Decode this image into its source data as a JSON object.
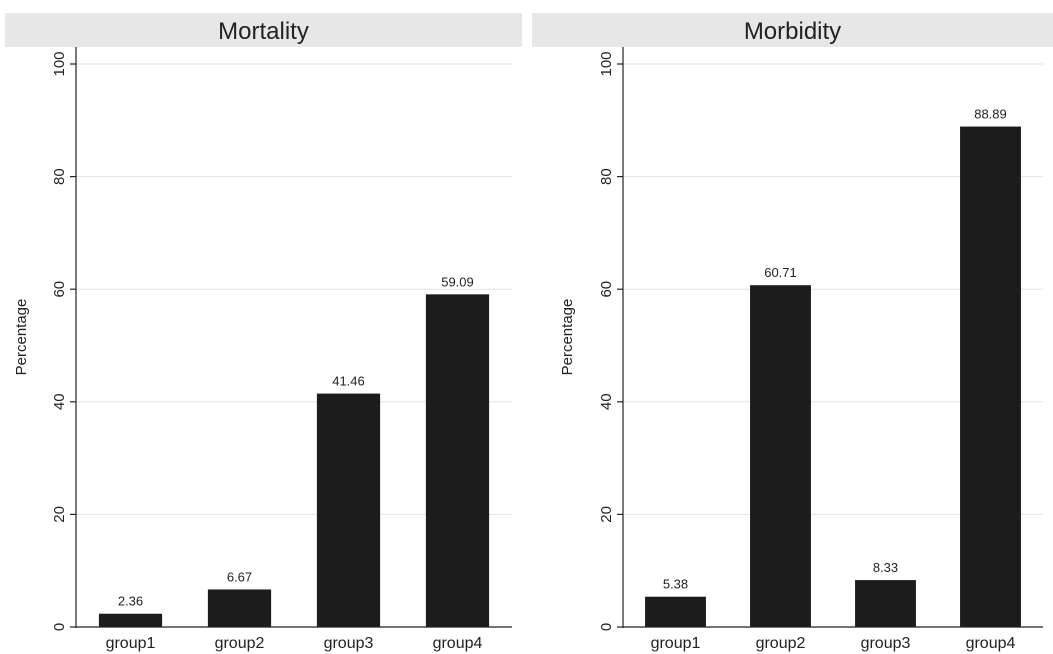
{
  "chart_data": [
    {
      "type": "bar",
      "title": "Mortality",
      "ylabel": "Percentage",
      "xlabel": "",
      "categories": [
        "group1",
        "group2",
        "group3",
        "group4"
      ],
      "values": [
        2.36,
        6.67,
        41.46,
        59.09
      ],
      "value_labels": [
        "2.36",
        "6.67",
        "41.46",
        "59.09"
      ],
      "ylim": [
        0,
        100
      ],
      "yticks": [
        0,
        20,
        40,
        60,
        80,
        100
      ],
      "ytick_labels": [
        "0",
        "20",
        "40",
        "60",
        "80",
        "100"
      ],
      "grid": true,
      "legend": "none",
      "bar_color": "#1c1c1c",
      "title_band_color": "#e7e7e7"
    },
    {
      "type": "bar",
      "title": "Morbidity",
      "ylabel": "Percentage",
      "xlabel": "",
      "categories": [
        "group1",
        "group2",
        "group3",
        "group4"
      ],
      "values": [
        5.38,
        60.71,
        8.33,
        88.89
      ],
      "value_labels": [
        "5.38",
        "60.71",
        "8.33",
        "88.89"
      ],
      "ylim": [
        0,
        100
      ],
      "yticks": [
        0,
        20,
        40,
        60,
        80,
        100
      ],
      "ytick_labels": [
        "0",
        "20",
        "40",
        "60",
        "80",
        "100"
      ],
      "grid": true,
      "legend": "none",
      "bar_color": "#1c1c1c",
      "title_band_color": "#e7e7e7"
    }
  ]
}
